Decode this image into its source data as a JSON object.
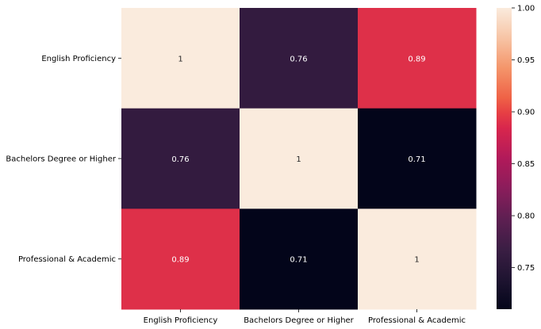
{
  "chart_data": {
    "type": "heatmap",
    "title": "",
    "xlabel": "",
    "ylabel": "",
    "row_labels": [
      "English Proficiency",
      "Bachelors Degree or Higher",
      "Professional & Academic"
    ],
    "col_labels": [
      "English Proficiency",
      "Bachelors Degree or Higher",
      "Professional & Academic"
    ],
    "values": [
      [
        1,
        0.76,
        0.89
      ],
      [
        0.76,
        1,
        0.71
      ],
      [
        0.89,
        0.71,
        1
      ]
    ],
    "annotations": [
      [
        "1",
        "0.76",
        "0.89"
      ],
      [
        "0.76",
        "1",
        "0.71"
      ],
      [
        "0.89",
        "0.71",
        "1"
      ]
    ],
    "colormap": "rocket",
    "vmin": 0.71,
    "vmax": 1.0,
    "colorbar": {
      "ticks": [
        0.75,
        0.8,
        0.85,
        0.9,
        0.95,
        1.0
      ],
      "tick_labels": [
        "0.75",
        "0.80",
        "0.85",
        "0.90",
        "0.95",
        "1.00"
      ]
    },
    "colormap_stops": [
      {
        "v": 0.0,
        "color": "#03051a"
      },
      {
        "v": 0.1,
        "color": "#1f1431"
      },
      {
        "v": 0.2,
        "color": "#3b1e44"
      },
      {
        "v": 0.3,
        "color": "#5e1f52"
      },
      {
        "v": 0.4,
        "color": "#8a1d5b"
      },
      {
        "v": 0.5,
        "color": "#b11a5a"
      },
      {
        "v": 0.6,
        "color": "#d8264d"
      },
      {
        "v": 0.65,
        "color": "#e63e44"
      },
      {
        "v": 0.7,
        "color": "#ef6146"
      },
      {
        "v": 0.8,
        "color": "#f4956a"
      },
      {
        "v": 0.9,
        "color": "#f7c4a5"
      },
      {
        "v": 1.0,
        "color": "#faebdd"
      }
    ],
    "grid": false,
    "legend": "colorbar-right"
  }
}
